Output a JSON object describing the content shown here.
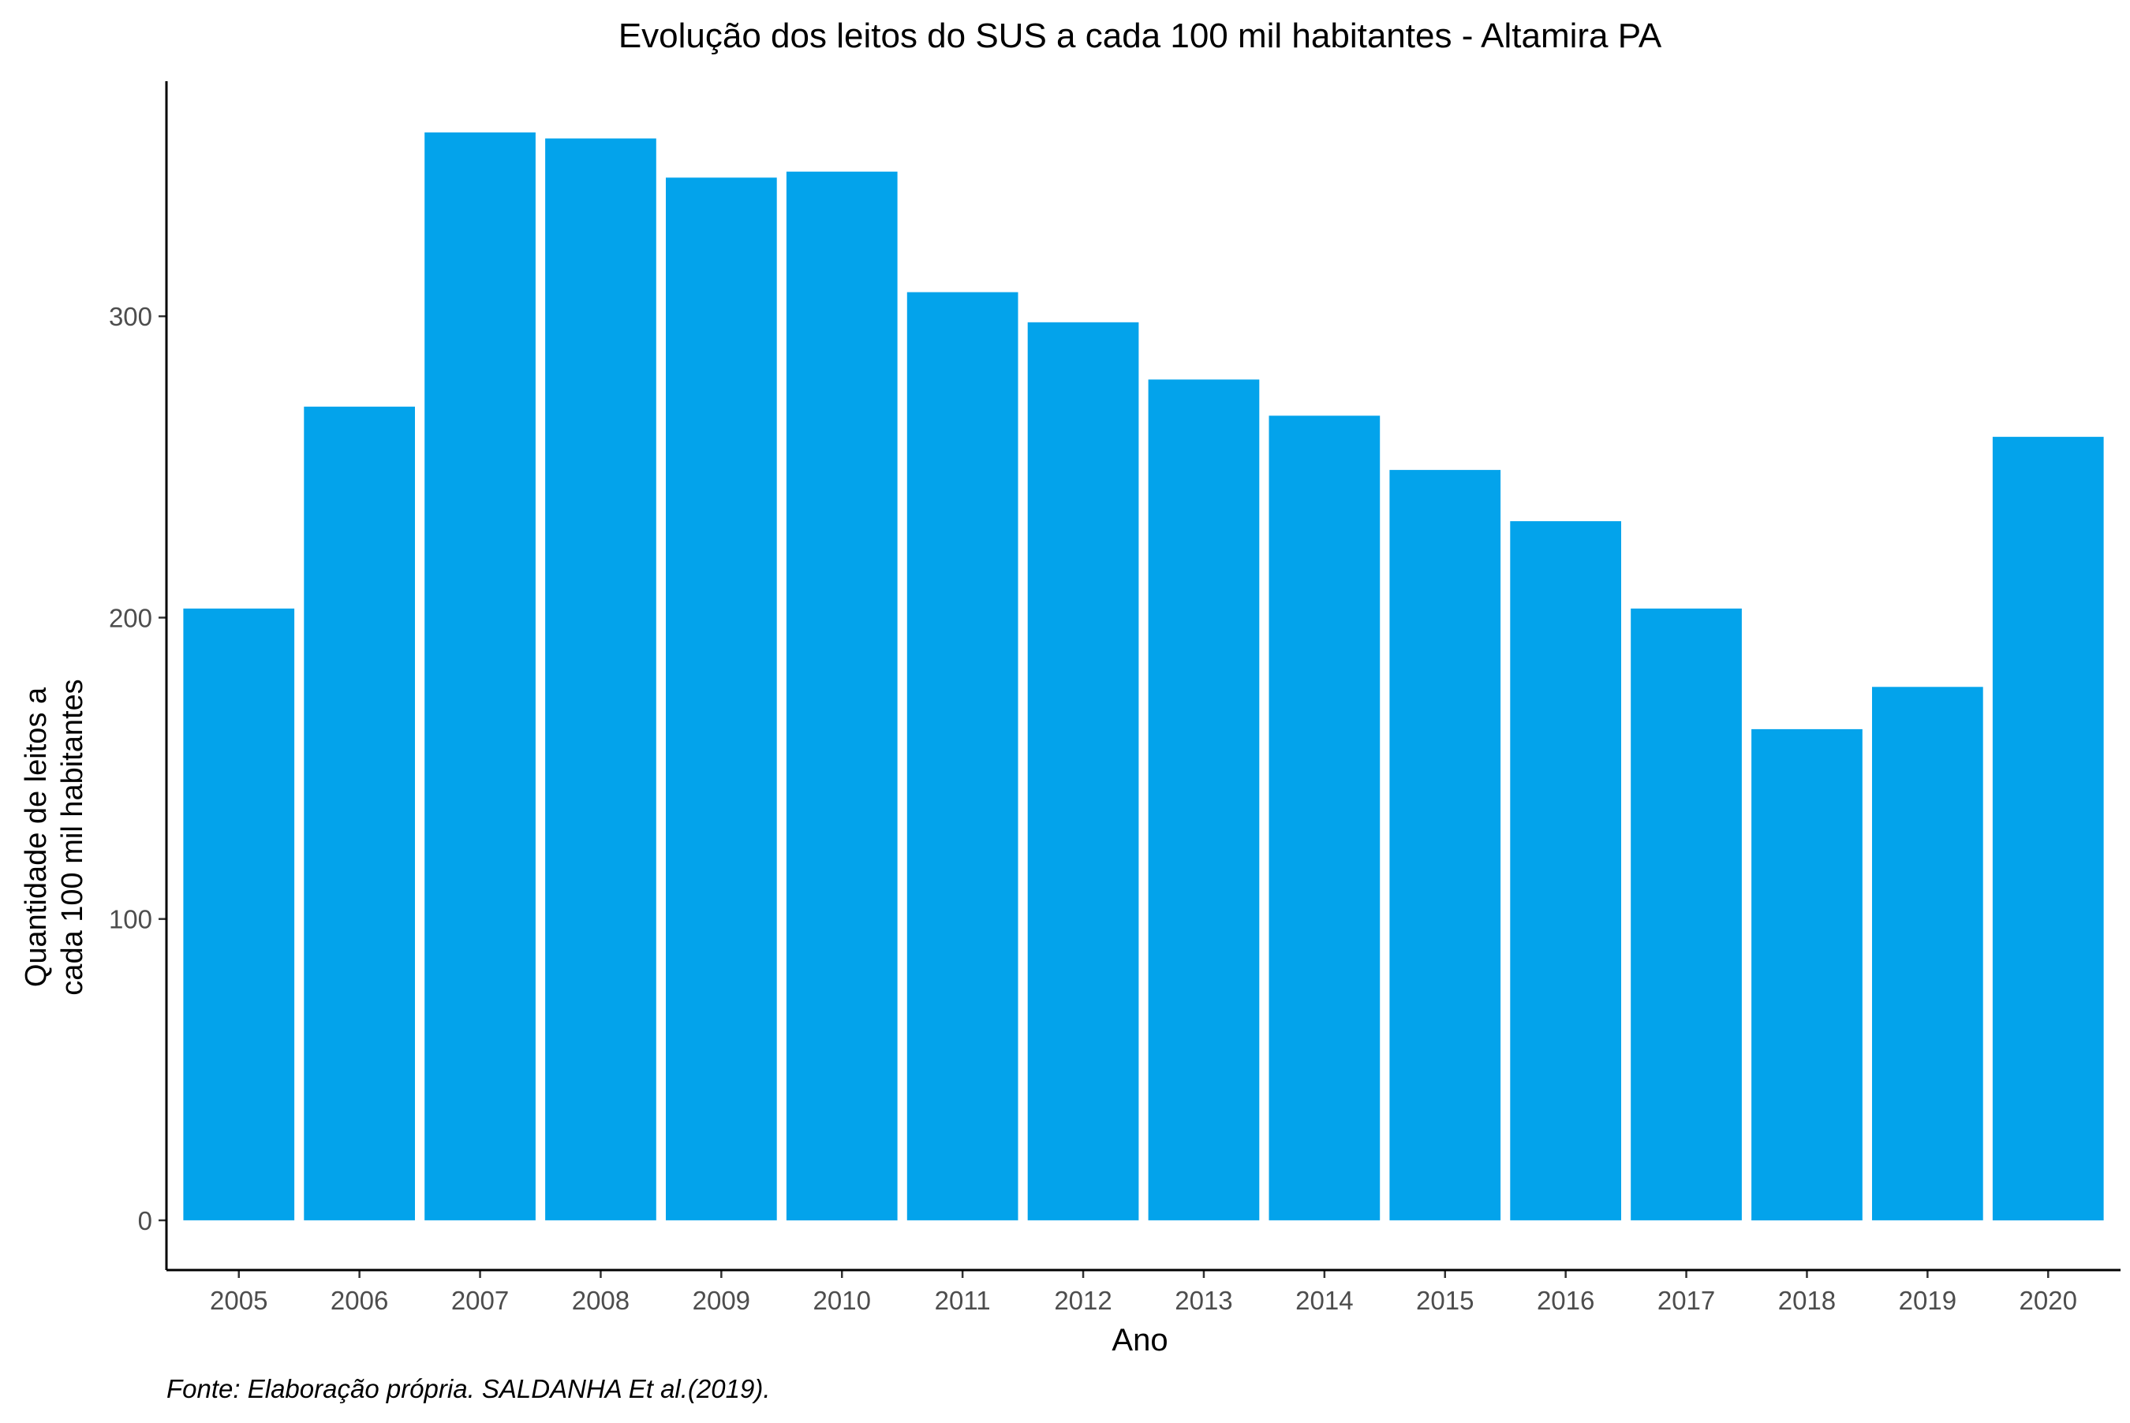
{
  "chart_data": {
    "type": "bar",
    "title": "Evolução dos leitos do SUS a cada 100 mil habitantes -  Altamira PA",
    "xlabel": "Ano",
    "ylabel_lines": [
      "Quantidade de leitos a",
      "cada 100 mil habitantes"
    ],
    "caption": "Fonte: Elaboração própria. SALDANHA Et al.(2019).",
    "categories": [
      "2005",
      "2006",
      "2007",
      "2008",
      "2009",
      "2010",
      "2011",
      "2012",
      "2013",
      "2014",
      "2015",
      "2016",
      "2017",
      "2018",
      "2019",
      "2020"
    ],
    "values": [
      203,
      270,
      361,
      359,
      346,
      348,
      308,
      298,
      279,
      267,
      249,
      232,
      203,
      163,
      177,
      260
    ],
    "yticks": [
      0,
      100,
      200,
      300
    ],
    "ylim": [
      -16.5,
      378
    ],
    "grid": false,
    "bar_color": "#03a3eb"
  }
}
